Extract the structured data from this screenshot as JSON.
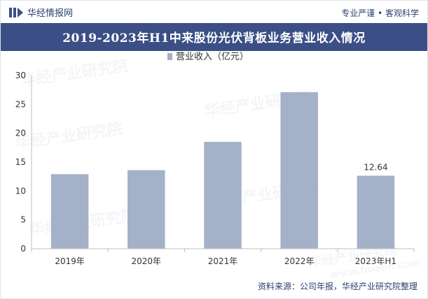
{
  "header": {
    "brand": "华经情报网",
    "tagline": "专业严谨 • 客观科学"
  },
  "title": "2019-2023年H1中来股份光伏背板业务营业收入情况",
  "source": "资料来源：公司年报，华经产业研究院整理",
  "watermark": {
    "text": "华经产业研究院",
    "url": "www.huaon.com"
  },
  "colors": {
    "bar": "#a5b0c9",
    "title_bg": "#3b4f86",
    "text_dark": "#2b3f70"
  },
  "chart_data": {
    "type": "bar",
    "categories": [
      "2019年",
      "2020年",
      "2021年",
      "2022年",
      "2023年H1"
    ],
    "series": [
      {
        "name": "营业收入（亿元）",
        "values": [
          12.9,
          13.6,
          18.5,
          27.1,
          12.64
        ]
      }
    ],
    "data_labels": [
      "",
      "",
      "",
      "",
      "12.64"
    ],
    "yticks": [
      "0",
      "5",
      "10",
      "15",
      "20",
      "25",
      "30"
    ],
    "ylim": [
      0,
      30
    ],
    "legend_position": "top-center",
    "grid": false
  }
}
